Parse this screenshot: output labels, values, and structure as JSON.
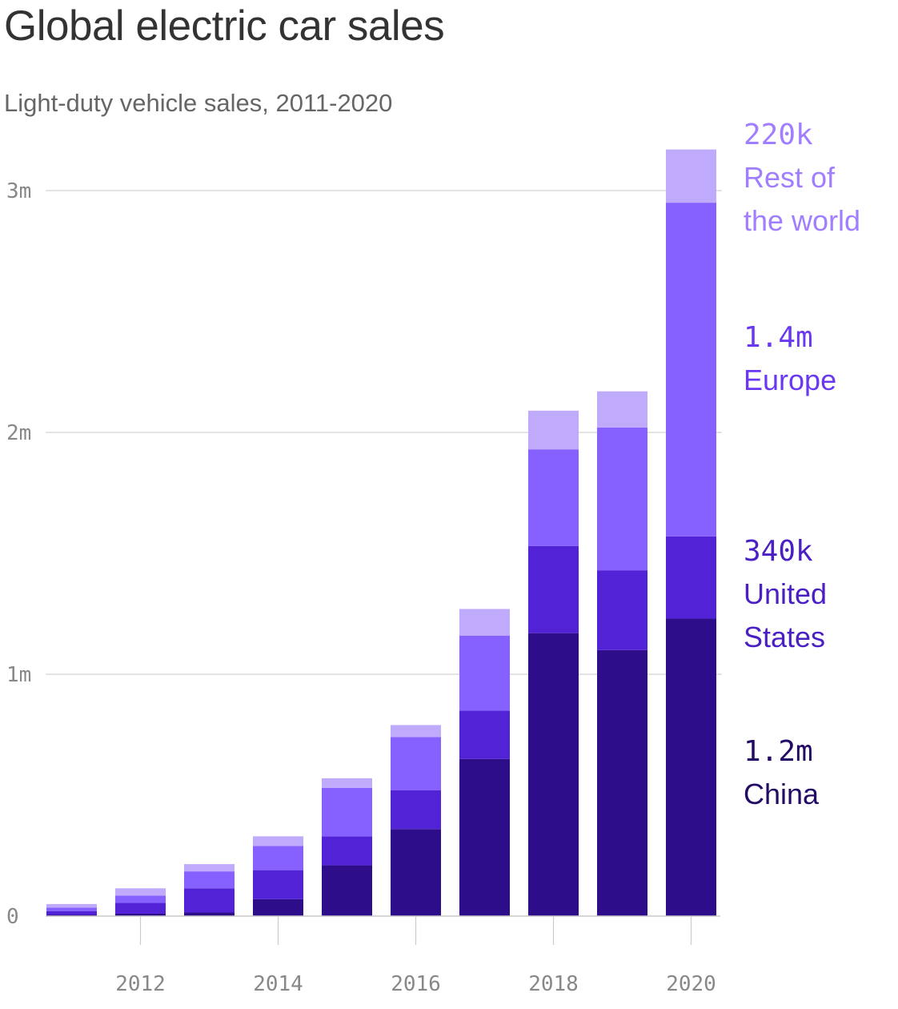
{
  "title": "Global electric car sales",
  "subtitle": "Light-duty vehicle sales, 2011-2020",
  "chart_data": {
    "type": "bar",
    "stacked": true,
    "title": "Global electric car sales",
    "subtitle": "Light-duty vehicle sales, 2011-2020",
    "categories": [
      "2011",
      "2012",
      "2013",
      "2014",
      "2015",
      "2016",
      "2017",
      "2018",
      "2019",
      "2020"
    ],
    "x_tick_labels": [
      "2012",
      "2014",
      "2016",
      "2018",
      "2020"
    ],
    "y_tick_labels": [
      "0",
      "1m",
      "2m",
      "3m"
    ],
    "y_ticks": [
      0,
      1000000,
      2000000,
      3000000
    ],
    "ylim": [
      0,
      3200000
    ],
    "grid": true,
    "series": [
      {
        "name": "China",
        "color": "#2e0d8a",
        "values": [
          5000,
          10000,
          15000,
          70000,
          210000,
          360000,
          650000,
          1170000,
          1100000,
          1230000
        ]
      },
      {
        "name": "United States",
        "color": "#5223d6",
        "values": [
          15000,
          45000,
          100000,
          120000,
          120000,
          160000,
          200000,
          360000,
          330000,
          340000
        ]
      },
      {
        "name": "Europe",
        "color": "#8661ff",
        "values": [
          15000,
          30000,
          70000,
          100000,
          200000,
          220000,
          310000,
          400000,
          590000,
          1380000
        ]
      },
      {
        "name": "Rest of the world",
        "color": "#c0aafc",
        "values": [
          15000,
          30000,
          30000,
          40000,
          40000,
          50000,
          110000,
          160000,
          150000,
          220000
        ]
      }
    ],
    "end_labels": [
      {
        "series": "Rest of the world",
        "value": "220k",
        "lines": [
          "Rest of",
          "the world"
        ],
        "color": "#a07eff"
      },
      {
        "series": "Europe",
        "value": "1.4m",
        "lines": [
          "Europe"
        ],
        "color": "#6a38f0"
      },
      {
        "series": "United States",
        "value": "340k",
        "lines": [
          "United",
          "States"
        ],
        "color": "#4a1fc4"
      },
      {
        "series": "China",
        "value": "1.2m",
        "lines": [
          "China"
        ],
        "color": "#230a66"
      }
    ]
  }
}
